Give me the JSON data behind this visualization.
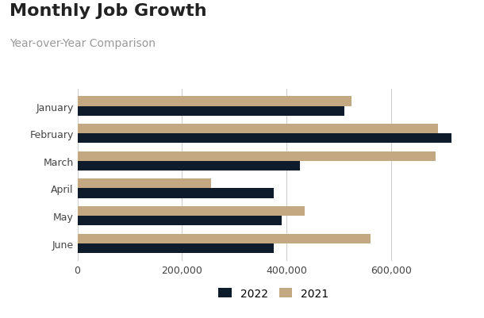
{
  "title": "Monthly Job Growth",
  "subtitle": "Year-over-Year Comparison",
  "months": [
    "January",
    "February",
    "March",
    "April",
    "May",
    "June"
  ],
  "values_2022": [
    510000,
    715000,
    425000,
    375000,
    390000,
    375000
  ],
  "values_2021": [
    525000,
    690000,
    685000,
    255000,
    435000,
    560000
  ],
  "color_2022": "#0d1b2a",
  "color_2021": "#c4a882",
  "background_color": "#ffffff",
  "plot_bg_color": "#f0f0f0",
  "title_fontsize": 16,
  "subtitle_fontsize": 10,
  "tick_fontsize": 9,
  "legend_fontsize": 10,
  "xlim": [
    0,
    750000
  ],
  "bar_height": 0.35,
  "legend_labels": [
    "2022",
    "2021"
  ]
}
